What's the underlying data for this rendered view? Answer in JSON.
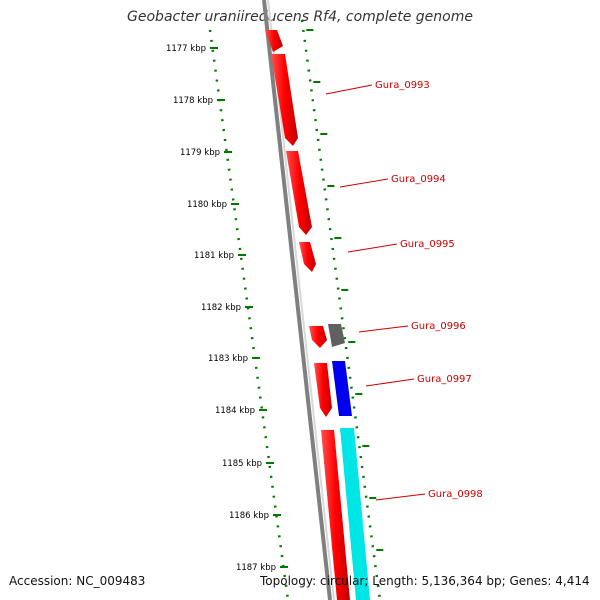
{
  "title": "Geobacter uraniireducens Rf4, complete genome",
  "accession_text": "Accession: NC_009483",
  "summary_text": "Topology: circular; Length: 5,136,364 bp; Genes: 4,414",
  "ticks": [
    "1177 kbp",
    "1178 kbp",
    "1179 kbp",
    "1180 kbp",
    "1181 kbp",
    "1182 kbp",
    "1183 kbp",
    "1184 kbp",
    "1185 kbp",
    "1186 kbp",
    "1187 kbp"
  ],
  "genes": [
    {
      "label": "Gura_0993",
      "color": "#ff0000"
    },
    {
      "label": "Gura_0994",
      "color": "#ff0000"
    },
    {
      "label": "Gura_0995",
      "color": "#ff0000"
    },
    {
      "label": "Gura_0996",
      "color": "#ff0000"
    },
    {
      "label": "Gura_0997",
      "color": "#ff0000"
    },
    {
      "label": "Gura_0998",
      "color": "#ff0000"
    }
  ],
  "colors": {
    "backbone": "#808080",
    "tick": "#007700",
    "gene_forward": "#ff0000",
    "gene_grey": "#606060",
    "gene_blue": "#0000ee",
    "gene_cyan": "#00e5e5",
    "label": "#cc0000"
  }
}
